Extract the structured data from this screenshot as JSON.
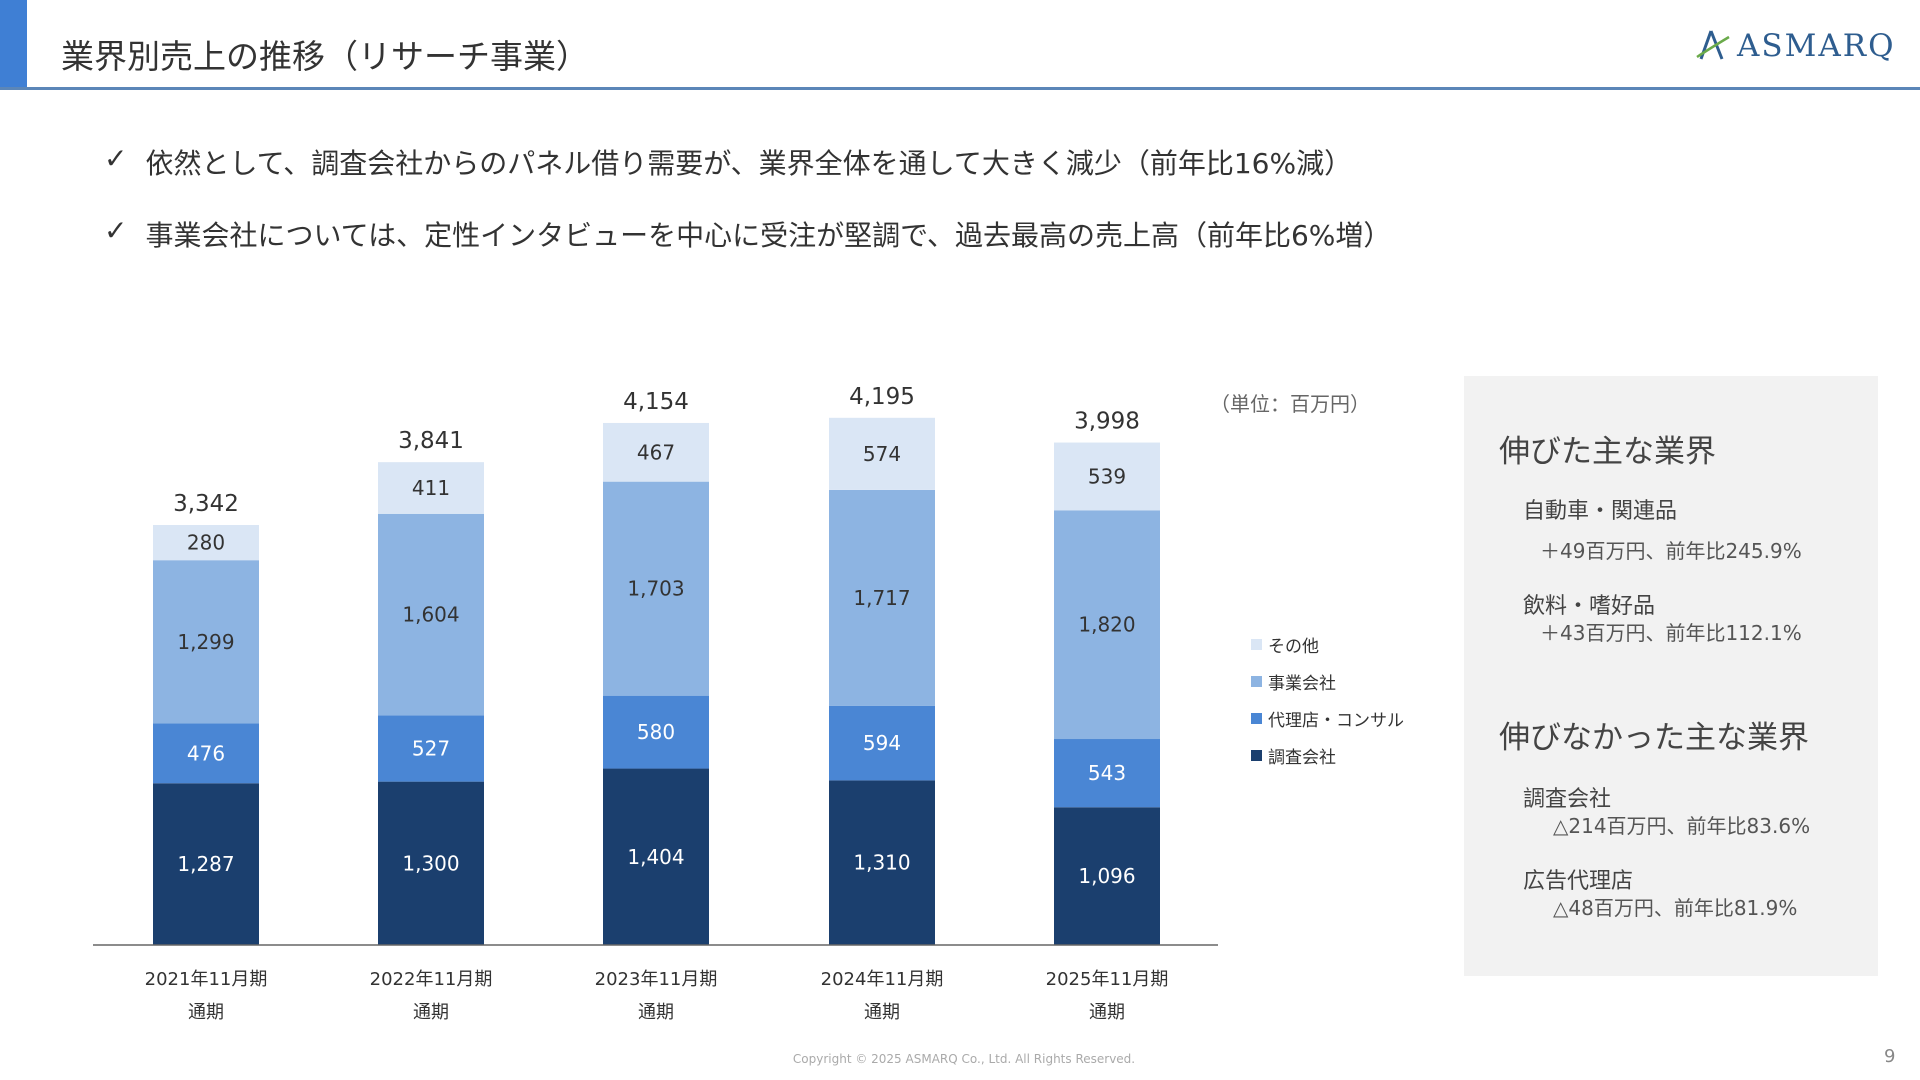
{
  "header": {
    "title": "業界別売上の推移（リサーチ事業）",
    "logo_text": "ASMARQ"
  },
  "bullets": [
    {
      "check": "✓",
      "text": "依然として、調査会社からのパネル借り需要が、業界全体を通して大きく減少（前年比16%減）"
    },
    {
      "check": "✓",
      "text": "事業会社については、定性インタビューを中心に受注が堅調で、過去最高の売上高（前年比6%増）"
    }
  ],
  "chart_data": {
    "type": "bar",
    "stacked": true,
    "unit_label": "（単位：百万円）",
    "categories": [
      [
        "2021年11月期",
        "通期"
      ],
      [
        "2022年11月期",
        "通期"
      ],
      [
        "2023年11月期",
        "通期"
      ],
      [
        "2024年11月期",
        "通期"
      ],
      [
        "2025年11月期",
        "通期"
      ]
    ],
    "series": [
      {
        "name": "調査会社",
        "color": "#1b3f6e",
        "label_color": "#ffffff",
        "values": [
          1287,
          1300,
          1404,
          1310,
          1096
        ]
      },
      {
        "name": "代理店・コンサル",
        "color": "#4a86d4",
        "label_color": "#ffffff",
        "values": [
          476,
          527,
          580,
          594,
          543
        ]
      },
      {
        "name": "事業会社",
        "color": "#8db4e2",
        "label_color": "#333333",
        "values": [
          1299,
          1604,
          1703,
          1717,
          1820
        ]
      },
      {
        "name": "その他",
        "color": "#dae6f5",
        "label_color": "#333333",
        "values": [
          280,
          411,
          467,
          574,
          539
        ]
      }
    ],
    "totals": [
      3342,
      3841,
      4154,
      4195,
      3998
    ],
    "legend_order": [
      "その他",
      "事業会社",
      "代理店・コンサル",
      "調査会社"
    ],
    "legend_position": "right",
    "grid": false
  },
  "panel": {
    "up_heading": "伸びた主な業界",
    "up": [
      {
        "name": "自動車・関連品",
        "detail": "＋49百万円、前年比245.9%"
      },
      {
        "name": "飲料・嗜好品",
        "detail": "＋43百万円、前年比112.1%"
      }
    ],
    "down_heading": "伸びなかった主な業界",
    "down": [
      {
        "name": "調査会社",
        "detail": "△214百万円、前年比83.6%"
      },
      {
        "name": "広告代理店",
        "detail": "△48百万円、前年比81.9%"
      }
    ]
  },
  "footer": {
    "copyright": "Copyright © 2025 ASMARQ Co., Ltd. All Rights Reserved.",
    "page": "9"
  }
}
